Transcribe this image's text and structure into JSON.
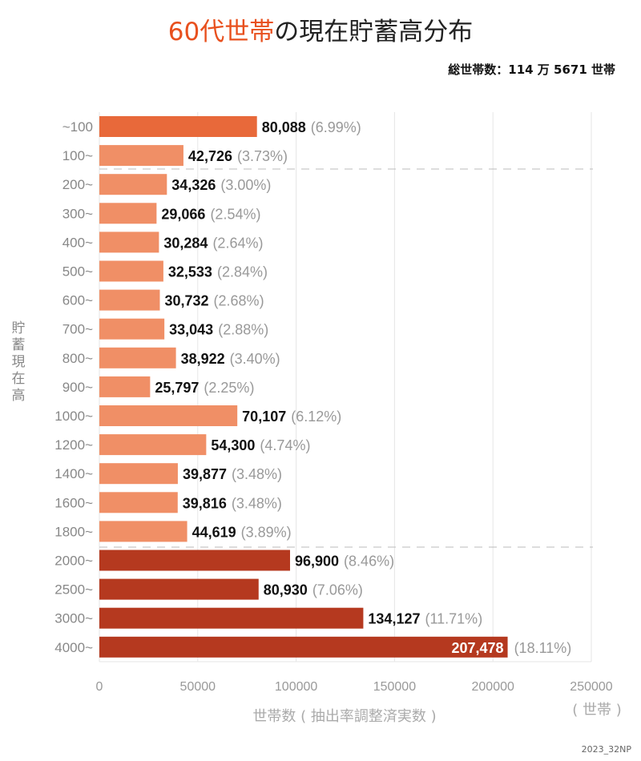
{
  "title_highlight": "60代世帯",
  "title_rest": "の現在貯蓄高分布",
  "total_label": "総世帯数：114 万 5671 世帯",
  "credit": "2023_32NP",
  "colors": {
    "first": "#e8693a",
    "light": "#f08f66",
    "dark": "#b5391f",
    "title_accent": "#e8501e"
  },
  "chart_data": {
    "type": "bar",
    "orientation": "horizontal",
    "title": "60代世帯の現在貯蓄高分布",
    "ylabel": "貯蓄現在高",
    "xlabel": "世帯数 ( 抽出率調整済実数 )",
    "xunit": "( 世帯 )",
    "xlim": [
      0,
      250000
    ],
    "xticks": [
      "0",
      "50000",
      "100000",
      "150000",
      "200000",
      "250000"
    ],
    "grid": true,
    "categories": [
      "~100",
      "100~",
      "200~",
      "300~",
      "400~",
      "500~",
      "600~",
      "700~",
      "800~",
      "900~",
      "1000~",
      "1200~",
      "1400~",
      "1600~",
      "1800~",
      "2000~",
      "2500~",
      "3000~",
      "4000~"
    ],
    "values": [
      80088,
      42726,
      34326,
      29066,
      30284,
      32533,
      30732,
      33043,
      38922,
      25797,
      70107,
      54300,
      39877,
      39816,
      44619,
      96900,
      80930,
      134127,
      207478
    ],
    "value_labels": [
      "80,088",
      "42,726",
      "34,326",
      "29,066",
      "30,284",
      "32,533",
      "30,732",
      "33,043",
      "38,922",
      "25,797",
      "70,107",
      "54,300",
      "39,877",
      "39,816",
      "44,619",
      "96,900",
      "80,930",
      "134,127",
      "207,478"
    ],
    "percent_labels": [
      "(6.99%)",
      "(3.73%)",
      "(3.00%)",
      "(2.54%)",
      "(2.64%)",
      "(2.84%)",
      "(2.68%)",
      "(2.88%)",
      "(3.40%)",
      "(2.25%)",
      "(6.12%)",
      "(4.74%)",
      "(3.48%)",
      "(3.48%)",
      "(3.89%)",
      "(8.46%)",
      "(7.06%)",
      "(11.71%)",
      "(18.11%)"
    ],
    "groups": [
      "first",
      "light",
      "light",
      "light",
      "light",
      "light",
      "light",
      "light",
      "light",
      "light",
      "light",
      "light",
      "light",
      "light",
      "light",
      "dark",
      "dark",
      "dark",
      "dark"
    ]
  }
}
